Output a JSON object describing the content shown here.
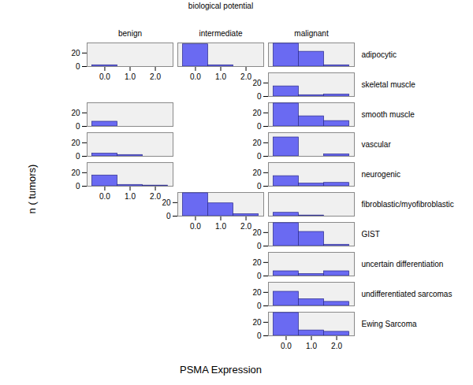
{
  "chart_data": {
    "type": "bar",
    "facet_column_title": "biological potential",
    "xlabel": "PSMA Expression",
    "ylabel": "n ( tumors)",
    "columns": [
      "benign",
      "intermediate",
      "malignant"
    ],
    "rows": [
      "adipocytic",
      "skeletal muscle",
      "smooth muscle",
      "vascular",
      "neurogenic",
      "fibroblastic/myofibroblastic",
      "GIST",
      "uncertain differentiation",
      "undifferentiated sarcomas",
      "Ewing Sarcoma"
    ],
    "x": [
      0,
      1,
      2
    ],
    "xlim": [
      -0.7,
      2.7
    ],
    "xticks": [
      0,
      1,
      2
    ],
    "ylim": [
      0,
      35
    ],
    "yticks": [
      0,
      20
    ],
    "color": "#6a6af2",
    "panels": [
      {
        "row": "adipocytic",
        "column": "benign",
        "values": [
          2,
          0,
          0
        ]
      },
      {
        "row": "adipocytic",
        "column": "intermediate",
        "values": [
          33,
          2,
          0
        ]
      },
      {
        "row": "adipocytic",
        "column": "malignant",
        "values": [
          34,
          22,
          2
        ]
      },
      {
        "row": "skeletal muscle",
        "column": "benign",
        "values": [
          0,
          0,
          0
        ]
      },
      {
        "row": "skeletal muscle",
        "column": "intermediate",
        "values": [
          0,
          0,
          0
        ]
      },
      {
        "row": "skeletal muscle",
        "column": "malignant",
        "values": [
          15,
          2,
          3
        ]
      },
      {
        "row": "smooth muscle",
        "column": "benign",
        "values": [
          7,
          0,
          0
        ]
      },
      {
        "row": "smooth muscle",
        "column": "intermediate",
        "values": [
          0,
          0,
          0
        ]
      },
      {
        "row": "smooth muscle",
        "column": "malignant",
        "values": [
          34,
          15,
          8
        ]
      },
      {
        "row": "vascular",
        "column": "benign",
        "values": [
          4,
          2,
          0
        ]
      },
      {
        "row": "vascular",
        "column": "intermediate",
        "values": [
          0,
          0,
          0
        ]
      },
      {
        "row": "vascular",
        "column": "malignant",
        "values": [
          28,
          0,
          3
        ]
      },
      {
        "row": "neurogenic",
        "column": "benign",
        "values": [
          16,
          2,
          1
        ]
      },
      {
        "row": "neurogenic",
        "column": "intermediate",
        "values": [
          0,
          0,
          0
        ]
      },
      {
        "row": "neurogenic",
        "column": "malignant",
        "values": [
          15,
          4,
          5
        ]
      },
      {
        "row": "fibroblastic/myofibroblastic",
        "column": "benign",
        "values": [
          0,
          0,
          0
        ]
      },
      {
        "row": "fibroblastic/myofibroblastic",
        "column": "intermediate",
        "values": [
          34,
          19,
          3
        ]
      },
      {
        "row": "fibroblastic/myofibroblastic",
        "column": "malignant",
        "values": [
          5,
          1,
          0
        ]
      },
      {
        "row": "GIST",
        "column": "benign",
        "values": [
          0,
          0,
          0
        ]
      },
      {
        "row": "GIST",
        "column": "intermediate",
        "values": [
          0,
          0,
          0
        ]
      },
      {
        "row": "GIST",
        "column": "malignant",
        "values": [
          34,
          21,
          2
        ]
      },
      {
        "row": "uncertain differentiation",
        "column": "benign",
        "values": [
          0,
          0,
          0
        ]
      },
      {
        "row": "uncertain differentiation",
        "column": "intermediate",
        "values": [
          0,
          0,
          0
        ]
      },
      {
        "row": "uncertain differentiation",
        "column": "malignant",
        "values": [
          7,
          3,
          7
        ]
      },
      {
        "row": "undifferentiated sarcomas",
        "column": "benign",
        "values": [
          0,
          0,
          0
        ]
      },
      {
        "row": "undifferentiated sarcomas",
        "column": "intermediate",
        "values": [
          0,
          0,
          0
        ]
      },
      {
        "row": "undifferentiated sarcomas",
        "column": "malignant",
        "values": [
          21,
          10,
          6
        ]
      },
      {
        "row": "Ewing Sarcoma",
        "column": "benign",
        "values": [
          0,
          0,
          0
        ]
      },
      {
        "row": "Ewing Sarcoma",
        "column": "intermediate",
        "values": [
          0,
          0,
          0
        ]
      },
      {
        "row": "Ewing Sarcoma",
        "column": "malignant",
        "values": [
          34,
          8,
          6
        ]
      }
    ]
  }
}
